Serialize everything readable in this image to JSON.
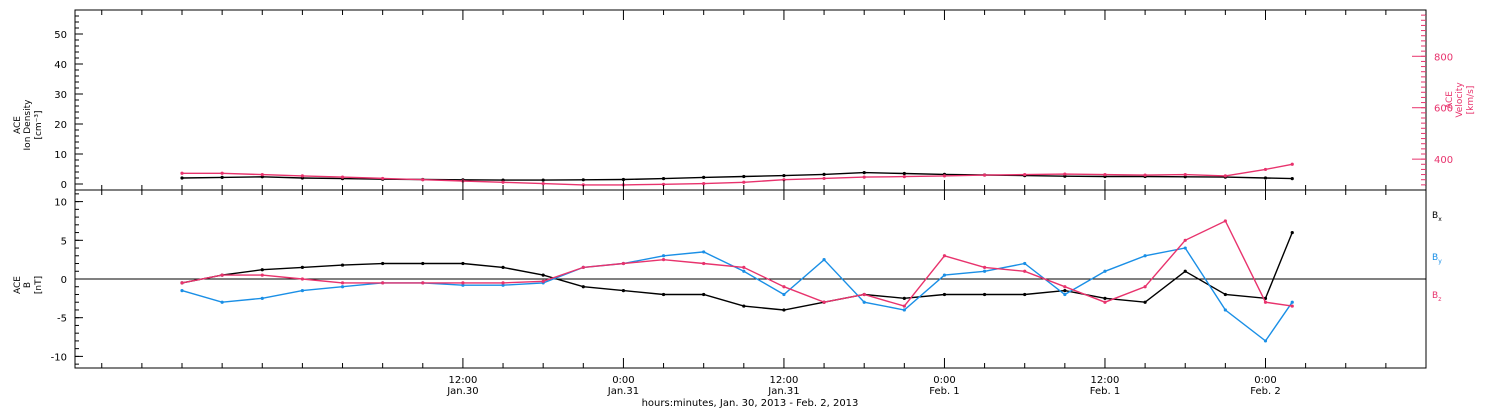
{
  "colors": {
    "black": "#000000",
    "blue": "#1a8fe6",
    "pink": "#e8336d",
    "axis": "#000000"
  },
  "chart_data": [
    {
      "type": "scatter",
      "panel": "top",
      "ylabel_left": [
        "ACE",
        "Ion Density",
        "[cm⁻³]"
      ],
      "ylabel_right": [
        "ACE",
        "Velocity",
        "[km/s]"
      ],
      "left_axis": {
        "ylim": [
          -2,
          58
        ],
        "ticks": [
          0,
          10,
          20,
          30,
          40,
          50
        ]
      },
      "right_axis": {
        "ylim": [
          280,
          980
        ],
        "ticks": [
          400,
          600,
          800
        ]
      },
      "series": [
        {
          "color": "black",
          "axis": "left",
          "x": [
            -9,
            -6,
            -3,
            0,
            3,
            6,
            9,
            12,
            15,
            18,
            21,
            24,
            27,
            30,
            33,
            36,
            39,
            42,
            45,
            48,
            51,
            54,
            57,
            60,
            63,
            66,
            69,
            72,
            74
          ],
          "y": [
            2,
            2.2,
            2.4,
            2,
            1.8,
            1.6,
            1.5,
            1.4,
            1.3,
            1.3,
            1.4,
            1.5,
            1.8,
            2.2,
            2.5,
            2.8,
            3.2,
            3.8,
            3.5,
            3.2,
            3,
            2.8,
            2.6,
            2.5,
            2.5,
            2.4,
            2.3,
            2,
            1.8
          ]
        },
        {
          "color": "pink",
          "axis": "right",
          "x": [
            -9,
            -6,
            -3,
            0,
            3,
            6,
            9,
            12,
            15,
            18,
            21,
            24,
            27,
            30,
            33,
            36,
            39,
            42,
            45,
            48,
            51,
            54,
            57,
            60,
            63,
            66,
            69,
            72,
            74
          ],
          "y": [
            345,
            345,
            340,
            335,
            330,
            325,
            320,
            315,
            310,
            305,
            300,
            300,
            302,
            305,
            310,
            320,
            325,
            330,
            332,
            335,
            338,
            340,
            342,
            340,
            338,
            340,
            335,
            360,
            380
          ]
        }
      ]
    },
    {
      "type": "scatter",
      "panel": "bottom",
      "ylabel_left": [
        "ACE",
        "B",
        "[nT]"
      ],
      "left_axis": {
        "ylim": [
          -11.5,
          11.5
        ],
        "ticks": [
          -10,
          -5,
          0,
          5,
          10
        ]
      },
      "legend": [
        "Bx",
        "By",
        "Bz"
      ],
      "series": [
        {
          "name": "Bx",
          "color": "black",
          "x": [
            -9,
            -6,
            -3,
            0,
            3,
            6,
            9,
            12,
            15,
            18,
            21,
            24,
            27,
            30,
            33,
            36,
            39,
            42,
            45,
            48,
            51,
            54,
            57,
            60,
            63,
            66,
            69,
            72,
            74
          ],
          "y": [
            -0.5,
            0.5,
            1.2,
            1.5,
            1.8,
            2.0,
            2.0,
            2.0,
            1.5,
            0.5,
            -1.0,
            -1.5,
            -2.0,
            -2.0,
            -3.5,
            -4.0,
            -3.0,
            -2.0,
            -2.5,
            -2.0,
            -2.0,
            -2.0,
            -1.5,
            -2.5,
            -3.0,
            1.0,
            -2.0,
            -2.5,
            6.0
          ]
        },
        {
          "name": "By",
          "color": "blue",
          "x": [
            -9,
            -6,
            -3,
            0,
            3,
            6,
            9,
            12,
            15,
            18,
            21,
            24,
            27,
            30,
            33,
            36,
            39,
            42,
            45,
            48,
            51,
            54,
            57,
            60,
            63,
            66,
            69,
            72,
            74
          ],
          "y": [
            -1.5,
            -3.0,
            -2.5,
            -1.5,
            -1.0,
            -0.5,
            -0.5,
            -0.8,
            -0.8,
            -0.5,
            1.5,
            2.0,
            3.0,
            3.5,
            1.0,
            -2.0,
            2.5,
            -3.0,
            -4.0,
            0.5,
            1.0,
            2.0,
            -2.0,
            1.0,
            3.0,
            4.0,
            -4.0,
            -8.0,
            -3.0
          ]
        },
        {
          "name": "Bz",
          "color": "pink",
          "x": [
            -9,
            -6,
            -3,
            0,
            3,
            6,
            9,
            12,
            15,
            18,
            21,
            24,
            27,
            30,
            33,
            36,
            39,
            42,
            45,
            48,
            51,
            54,
            57,
            60,
            63,
            66,
            69,
            72,
            74
          ],
          "y": [
            -0.5,
            0.5,
            0.5,
            0.0,
            -0.5,
            -0.5,
            -0.5,
            -0.5,
            -0.5,
            -0.3,
            1.5,
            2.0,
            2.5,
            2.0,
            1.5,
            -1.0,
            -3.0,
            -2.0,
            -3.5,
            3.0,
            1.5,
            1.0,
            -1.0,
            -3.0,
            -1.0,
            5.0,
            7.5,
            -3.0,
            -3.5
          ]
        }
      ]
    }
  ],
  "x_axis": {
    "xlim": [
      -17,
      84
    ],
    "ticks": [
      {
        "x": 12,
        "time": "12:00",
        "date": "Jan.30"
      },
      {
        "x": 24,
        "time": "0:00",
        "date": "Jan.31"
      },
      {
        "x": 36,
        "time": "12:00",
        "date": "Jan.31"
      },
      {
        "x": 48,
        "time": "0:00",
        "date": "Feb. 1"
      },
      {
        "x": 60,
        "time": "12:00",
        "date": "Feb. 1"
      },
      {
        "x": 72,
        "time": "0:00",
        "date": "Feb. 2"
      }
    ],
    "xlabel": "hours:minutes, Jan. 30, 2013 - Feb. 2, 2013"
  }
}
